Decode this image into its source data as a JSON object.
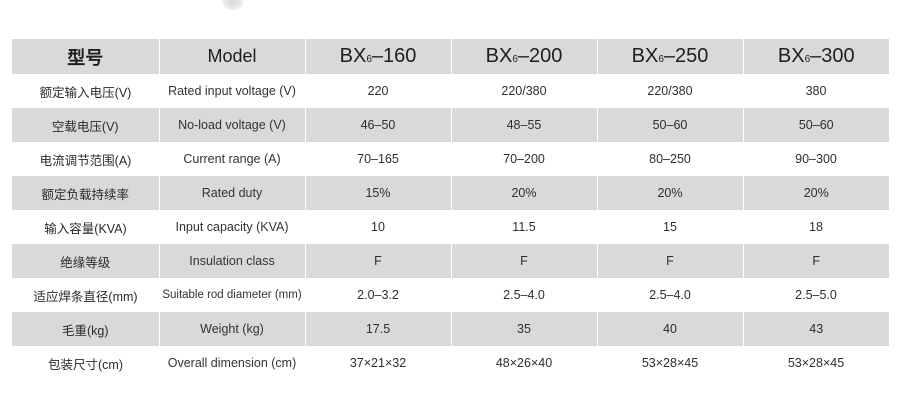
{
  "header": {
    "cn_label": "型号",
    "en_label": "Model",
    "models": [
      {
        "prefix": "BX",
        "sub": "6",
        "suffix": "–160"
      },
      {
        "prefix": "BX",
        "sub": "6",
        "suffix": "–200"
      },
      {
        "prefix": "BX",
        "sub": "6",
        "suffix": "–250"
      },
      {
        "prefix": "BX",
        "sub": "6",
        "suffix": "–300"
      }
    ]
  },
  "rows": [
    {
      "cn": "额定输入电压(V)",
      "en": "Rated input voltage (V)",
      "values": [
        "220",
        "220/380",
        "220/380",
        "380"
      ]
    },
    {
      "cn": "空载电压(V)",
      "en": "No-load voltage (V)",
      "values": [
        "46–50",
        "48–55",
        "50–60",
        "50–60"
      ]
    },
    {
      "cn": "电流调节范围(A)",
      "en": "Current range (A)",
      "values": [
        "70–165",
        "70–200",
        "80–250",
        "90–300"
      ]
    },
    {
      "cn": "额定负载持续率",
      "en": "Rated duty",
      "values": [
        "15%",
        "20%",
        "20%",
        "20%"
      ]
    },
    {
      "cn": "输入容量(KVA)",
      "en": "Input capacity (KVA)",
      "values": [
        "10",
        "11.5",
        "15",
        "18"
      ]
    },
    {
      "cn": "绝缘等级",
      "en": "Insulation class",
      "values": [
        "F",
        "F",
        "F",
        "F"
      ]
    },
    {
      "cn": "适应焊条直径(mm)",
      "en": "Suitable rod diameter (mm)",
      "values": [
        "2.0–3.2",
        "2.5–4.0",
        "2.5–4.0",
        "2.5–5.0"
      ]
    },
    {
      "cn": "毛重(kg)",
      "en": "Weight (kg)",
      "values": [
        "17.5",
        "35",
        "40",
        "43"
      ]
    },
    {
      "cn": "包装尺寸(cm)",
      "en": "Overall dimension (cm)",
      "values": [
        "37×21×32",
        "48×26×40",
        "53×28×45",
        "53×28×45"
      ]
    }
  ],
  "colors": {
    "shaded_row": "#d9d9d9",
    "background": "#ffffff",
    "text": "#2a2a2a"
  }
}
